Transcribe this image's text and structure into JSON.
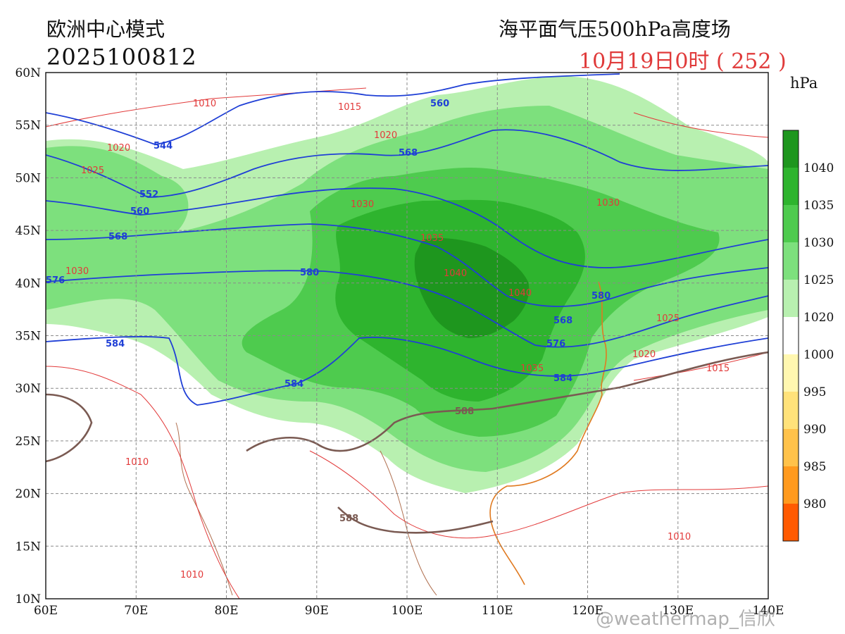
{
  "header": {
    "model": "欧洲中心模式",
    "run": "2025100812",
    "fields": "海平面气压500hPa高度场",
    "valid": "10月19日0时 ( 252 )"
  },
  "unit": "hPa",
  "axes": {
    "lat_labels": [
      "60N",
      "55N",
      "50N",
      "45N",
      "40N",
      "35N",
      "30N",
      "25N",
      "20N",
      "15N",
      "10N"
    ],
    "lon_labels": [
      "60E",
      "70E",
      "80E",
      "90E",
      "100E",
      "110E",
      "120E",
      "130E",
      "140E"
    ]
  },
  "colorbar": {
    "labels": [
      "1040",
      "1035",
      "1030",
      "1025",
      "1020",
      "1000",
      "995",
      "990",
      "985",
      "980"
    ],
    "colors": [
      "#1e961e",
      "#2eb42e",
      "#4ecb4e",
      "#7de07d",
      "#b8f0b0",
      "#ffffff",
      "#fff7b0",
      "#ffe27a",
      "#ffc24a",
      "#ff9a1e",
      "#ff5a00"
    ]
  },
  "styles": {
    "height_color": "#1f3fd6",
    "pressure_color": "#e23a3a",
    "ridge_color": "#7a5a52",
    "coast_color": "#e07a20"
  },
  "labels": {
    "height": [
      "560",
      "544",
      "568",
      "552",
      "560",
      "568",
      "580",
      "576",
      "584",
      "584",
      "580",
      "568",
      "576",
      "584"
    ],
    "pressure": [
      "1010",
      "1015",
      "1020",
      "1025",
      "1020",
      "1030",
      "1035",
      "1040",
      "1040",
      "1035",
      "1030",
      "1030",
      "1025",
      "1020",
      "1015",
      "1010",
      "1010",
      "1010"
    ],
    "ridge": [
      "588",
      "588"
    ]
  },
  "watermark": "@weathermap_信欣"
}
